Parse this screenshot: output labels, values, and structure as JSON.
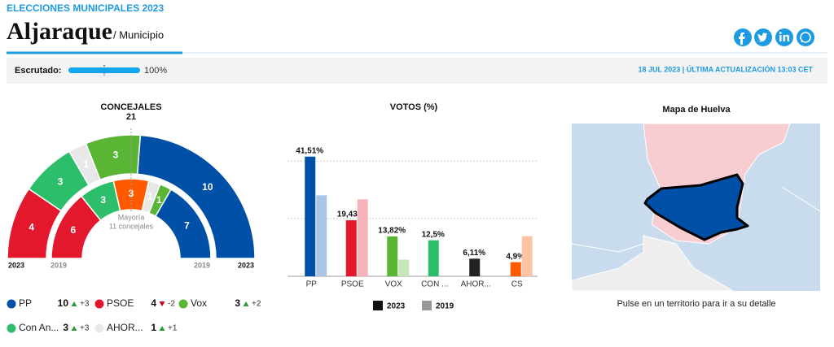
{
  "header": {
    "section": "ELECCIONES MUNICIPALES 2023",
    "title": "Aljaraque",
    "subtitle": "/ Municipio"
  },
  "status": {
    "label": "Escrutado:",
    "value": 100,
    "value_label": "100%",
    "updated": "18 JUL 2023 | ÚLTIMA ACTUALIZACIÓN 13:03 CET"
  },
  "concejales": {
    "title": "CONCEJALES",
    "total": 21,
    "majority": "Mayoría",
    "majority_note": "11 concejales",
    "year_outer": "2023",
    "year_inner": "2019",
    "arcs_2023": [
      {
        "color": "#e3182d",
        "seats": 4
      },
      {
        "color": "#2dbe6c",
        "seats": 3
      },
      {
        "color": "#e8e8e8",
        "seats": 1
      },
      {
        "color": "#5ab535",
        "seats": 3
      },
      {
        "color": "#0050a8",
        "seats": 10
      }
    ],
    "arcs_2019": [
      {
        "color": "#e3182d",
        "seats": 6
      },
      {
        "color": "#2dbe6c",
        "seats": 3
      },
      {
        "color": "#ff5a00",
        "seats": 3
      },
      {
        "color": "#e8e8e8",
        "seats": 1
      },
      {
        "color": "#5ab535",
        "seats": 1
      },
      {
        "color": "#0050a8",
        "seats": 7
      }
    ],
    "legend": [
      {
        "name": "PP",
        "color": "#0050a8",
        "seats": 10,
        "change": "+3",
        "up": true
      },
      {
        "name": "PSOE",
        "color": "#e3182d",
        "seats": 4,
        "change": "-2",
        "up": false
      },
      {
        "name": "Vox",
        "color": "#5ab535",
        "seats": 3,
        "change": "+2",
        "up": true
      },
      {
        "name": "Con An...",
        "color": "#2dbe6c",
        "seats": 3,
        "change": "+3",
        "up": true
      },
      {
        "name": "AHOR...",
        "color": "#e8e8e8",
        "seats": 1,
        "change": "+1",
        "up": true
      }
    ]
  },
  "votos": {
    "type": "bar",
    "title": "VOTOS (%)",
    "categories": [
      "PP",
      "PSOE",
      "VOX",
      "CON ...",
      "AHOR...",
      "CS"
    ],
    "series": [
      {
        "name": "2023",
        "color": "#111111",
        "colors": [
          "#0050a8",
          "#e3182d",
          "#5ab535",
          "#2dbe6c",
          "#222222",
          "#ff5a00"
        ],
        "values": [
          41.51,
          19.43,
          13.82,
          12.5,
          6.11,
          4.9
        ],
        "value_labels": [
          "41,51%",
          "19,43%",
          "13,82%",
          "12,5%",
          "6,11%",
          "4,9%"
        ]
      },
      {
        "name": "2019",
        "color": "#999999",
        "colors": [
          "#a9c4e4",
          "#f6b3ba",
          "#c6e8b8",
          "#b6ebcc",
          "#cccccc",
          "#ffc2a3"
        ],
        "values": [
          28.1,
          26.7,
          5.8,
          null,
          null,
          13.9
        ]
      }
    ],
    "ylim": [
      0,
      42
    ],
    "yticks": [
      0,
      20,
      40
    ],
    "grid": true
  },
  "mapa": {
    "title": "Mapa de Huelva",
    "caption": "Pulse en un territorio para ir a su detalle"
  }
}
